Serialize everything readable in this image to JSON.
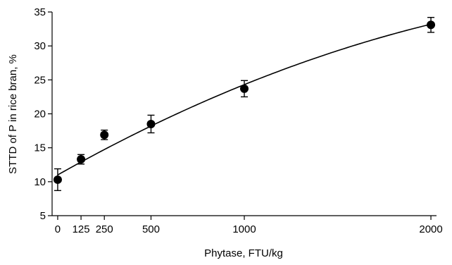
{
  "chart_data": {
    "type": "scatter",
    "title": "",
    "xlabel": "Phytase, FTU/kg",
    "ylabel": "STTD of P in rice bran, %",
    "xlim": [
      -30,
      2030
    ],
    "ylim": [
      5,
      35
    ],
    "x_ticks": [
      0,
      125,
      250,
      500,
      1000,
      2000
    ],
    "x_tick_labels": [
      "0",
      "125",
      "250",
      "500",
      "1000",
      "2000"
    ],
    "y_ticks": [
      5,
      10,
      15,
      20,
      25,
      30,
      35
    ],
    "y_tick_labels": [
      "5",
      "10",
      "15",
      "20",
      "25",
      "30",
      "35"
    ],
    "grid": false,
    "legend": "none",
    "series": [
      {
        "x": [
          0,
          125,
          250,
          500,
          1000,
          2000
        ],
        "y": [
          10.3,
          13.3,
          16.9,
          18.5,
          23.7,
          33.1
        ],
        "error": [
          1.6,
          0.7,
          0.7,
          1.3,
          1.2,
          1.1
        ],
        "marker": "circle",
        "color": "#000000"
      }
    ],
    "fit_curve": {
      "type": "quadratic",
      "coefficients": [
        11.0,
        0.0155,
        -2.2e-06
      ],
      "color": "#000000"
    }
  }
}
